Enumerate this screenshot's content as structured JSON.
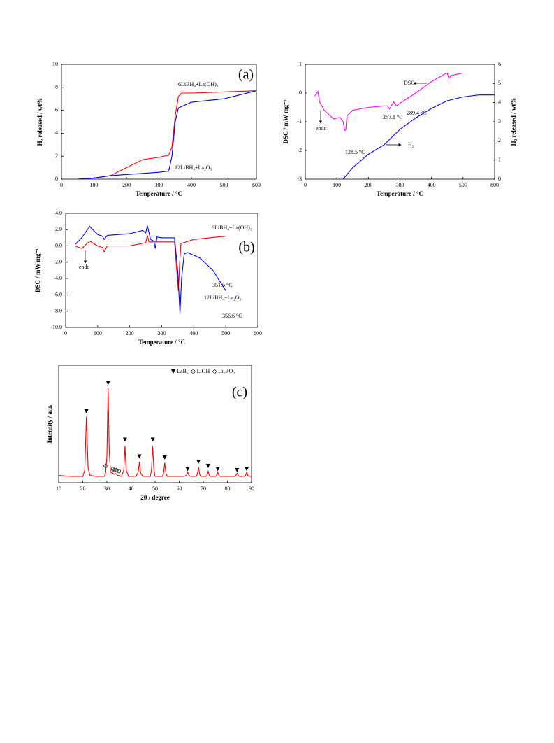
{
  "chart_data": [
    {
      "type": "line",
      "panel": "(a)",
      "xlabel": "Temperature / °C",
      "ylabel": "H₂ released / wt%",
      "xlim": [
        0,
        600
      ],
      "xticks": [
        0,
        100,
        200,
        300,
        400,
        500,
        600
      ],
      "ylim": [
        0,
        10
      ],
      "yticks": [
        0,
        2,
        4,
        6,
        8,
        10
      ],
      "series": [
        {
          "name": "6LiBH₄+La(OH)₃",
          "color": "#ff0000",
          "x": [
            50,
            100,
            150,
            200,
            250,
            300,
            330,
            340,
            350,
            360,
            370,
            400,
            500,
            600
          ],
          "values": [
            0,
            0.1,
            0.3,
            1.0,
            1.7,
            1.9,
            2.1,
            2.8,
            5.5,
            7.2,
            7.5,
            7.5,
            7.6,
            7.7
          ]
        },
        {
          "name": "12LiBH₄+La₂O₃",
          "color": "#0000ff",
          "x": [
            50,
            100,
            150,
            200,
            250,
            300,
            330,
            340,
            350,
            360,
            400,
            500,
            600
          ],
          "values": [
            0,
            0.1,
            0.3,
            0.4,
            0.5,
            0.6,
            0.7,
            2.0,
            5.0,
            6.2,
            6.7,
            7.0,
            7.7
          ]
        }
      ]
    },
    {
      "type": "line",
      "xlabel": "Temperature / °C",
      "ylabel": "DSC / mW mg⁻¹",
      "y2label": "H₂ released / wt%",
      "xlim": [
        0,
        600
      ],
      "xticks": [
        0,
        100,
        200,
        300,
        400,
        500,
        600
      ],
      "ylim": [
        -3,
        1
      ],
      "yticks": [
        -3,
        -2,
        -1,
        0,
        1
      ],
      "y2lim": [
        0,
        6
      ],
      "y2ticks": [
        0,
        1,
        2,
        3,
        4,
        5,
        6
      ],
      "annotations": [
        "endo",
        "128.5 °C",
        "267.1 °C",
        "289.4 °C"
      ],
      "series": [
        {
          "name": "DSC",
          "color": "#ff00ff",
          "x": [
            30,
            40,
            45,
            60,
            90,
            110,
            120,
            125,
            128.5,
            132,
            150,
            200,
            250,
            260,
            267.1,
            275,
            280,
            289.4,
            300,
            350,
            400,
            440,
            450,
            455,
            460,
            480,
            500
          ],
          "values": [
            -0.1,
            0.05,
            -0.3,
            -0.6,
            -0.9,
            -0.85,
            -1.0,
            -1.3,
            -1.28,
            -0.8,
            -0.6,
            -0.5,
            -0.45,
            -0.45,
            -0.55,
            -0.4,
            -0.3,
            -0.45,
            -0.35,
            0,
            0.4,
            0.65,
            0.7,
            0.5,
            0.6,
            0.65,
            0.7
          ]
        },
        {
          "name": "H₂",
          "color": "#0000ff",
          "axis": "y2",
          "x": [
            120,
            150,
            200,
            250,
            300,
            350,
            400,
            450,
            500,
            550,
            600
          ],
          "values": [
            0,
            0.6,
            1.3,
            1.8,
            2.6,
            3.2,
            3.7,
            4.1,
            4.3,
            4.4,
            4.4
          ]
        }
      ]
    },
    {
      "type": "line",
      "panel": "(b)",
      "xlabel": "Temperature / °C",
      "ylabel": "DSC / mW mg⁻¹",
      "xlim": [
        0,
        600
      ],
      "xticks": [
        0,
        100,
        200,
        300,
        400,
        500,
        600
      ],
      "ylim": [
        -10,
        4
      ],
      "yticks": [
        {
          "value": 4,
          "label": "4.0"
        },
        {
          "value": 2,
          "label": "2.0"
        },
        {
          "value": 0,
          "label": "0.0"
        },
        {
          "value": -2,
          "label": "-2.0"
        },
        {
          "value": -4,
          "label": "-4.0"
        },
        {
          "value": -6,
          "label": "-6.0"
        },
        {
          "value": -8,
          "label": "-8.0"
        },
        {
          "value": -10,
          "label": "-10.0"
        }
      ],
      "annotations": [
        "endo",
        "351.5 °C",
        "356.6 °C"
      ],
      "series": [
        {
          "name": "6LiBH₄+La(OH)₃",
          "color": "#ff0000",
          "x": [
            30,
            50,
            75,
            100,
            115,
            120,
            130,
            200,
            250,
            255,
            260,
            300,
            340,
            345,
            352,
            356,
            360,
            400,
            500
          ],
          "values": [
            0,
            -0.3,
            0.6,
            0,
            -0.2,
            -0.7,
            0,
            0,
            0.4,
            1.3,
            0.5,
            0.5,
            0.5,
            -2,
            -5.5,
            -2,
            0.3,
            0.8,
            1.2
          ]
        },
        {
          "name": "12LiBH₄+La₂O₃",
          "color": "#0000ff",
          "x": [
            30,
            50,
            75,
            100,
            115,
            120,
            130,
            200,
            240,
            250,
            255,
            265,
            275,
            280,
            285,
            300,
            340,
            350,
            357,
            362,
            370,
            380,
            420,
            460,
            500
          ],
          "values": [
            0.2,
            1,
            2.4,
            1.4,
            1.2,
            0.8,
            1.3,
            1.5,
            1.9,
            1.6,
            2.5,
            0.8,
            0.6,
            -0.3,
            1.1,
            1.0,
            1.0,
            -3,
            -8.3,
            -4,
            -1,
            -0.8,
            -1.5,
            -3,
            -5.5
          ]
        }
      ]
    },
    {
      "type": "line",
      "panel": "(c)",
      "xlabel": "2θ / degree",
      "ylabel": "Intensity / a.u.",
      "xlim": [
        10,
        90
      ],
      "xticks": [
        10,
        20,
        30,
        40,
        50,
        60,
        70,
        80,
        90
      ],
      "ylim": [
        0,
        100
      ],
      "series": [
        {
          "color": "#ff0000",
          "x": [
            10,
            15,
            20,
            20.8,
            21.5,
            22.2,
            23,
            26,
            29,
            29.5,
            30,
            30.5,
            31,
            31.5,
            32.5,
            33,
            33.5,
            34,
            34.5,
            35,
            36,
            37,
            37.5,
            38,
            39,
            42,
            43,
            43.5,
            44,
            45,
            48,
            48.5,
            49,
            49.5,
            50,
            53,
            53.5,
            54,
            54.5,
            55,
            62,
            63,
            63.5,
            64,
            65,
            67,
            67.5,
            68,
            68.5,
            69,
            71,
            71.5,
            72,
            72.5,
            73,
            75,
            75.5,
            76,
            76.5,
            77,
            83,
            83.5,
            84,
            84.5,
            85,
            87,
            87.5,
            88,
            88.5,
            89,
            90
          ],
          "values": [
            7,
            6,
            6,
            12,
            63,
            14,
            7,
            6,
            6,
            10,
            25,
            90,
            30,
            10,
            9,
            8,
            9,
            8,
            7,
            7,
            6,
            12,
            35,
            12,
            6,
            6,
            10,
            20,
            9,
            6,
            6,
            12,
            35,
            12,
            6,
            6,
            9,
            19,
            9,
            6,
            6,
            7,
            10,
            7,
            6,
            6,
            8,
            15,
            8,
            6,
            6,
            7,
            11,
            7,
            6,
            6,
            7,
            10,
            7,
            6,
            6,
            7,
            9,
            7,
            6,
            6,
            7,
            10,
            7,
            6,
            6
          ]
        }
      ],
      "markers": [
        {
          "name": "LaB₆",
          "symbol": "triangle",
          "x": [
            21.5,
            30.5,
            37.5,
            43.5,
            49,
            54,
            63.5,
            68,
            72,
            76,
            84,
            88
          ],
          "values": [
            68,
            95,
            41,
            25,
            41,
            24,
            13,
            20,
            16,
            13,
            12,
            13
          ]
        },
        {
          "name": "LiOH",
          "symbol": "circle",
          "x": [
            32.5,
            33.5,
            35
          ],
          "values": [
            13,
            12,
            11
          ]
        },
        {
          "name": "Li₃BO₃",
          "symbol": "diamond",
          "x": [
            29.5,
            33,
            34
          ],
          "values": [
            16,
            12,
            12
          ]
        }
      ]
    }
  ]
}
